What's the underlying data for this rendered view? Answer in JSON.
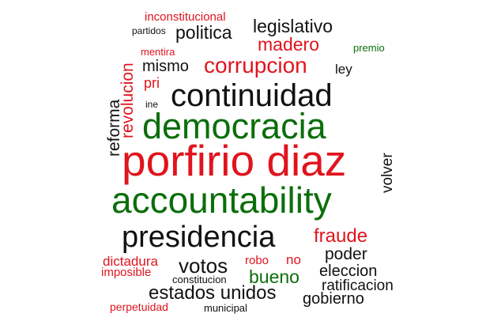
{
  "colors": {
    "red": "#e0141e",
    "green": "#0b6e0b",
    "black": "#111111"
  },
  "words": {
    "porfirio_diaz": "porfirio diaz",
    "democracia": "democracia",
    "accountability": "accountability",
    "continuidad": "continuidad",
    "presidencia": "presidencia",
    "corrupcion": "corrupcion",
    "estados_unidos": "estados unidos",
    "votos": "votos",
    "fraude": "fraude",
    "bueno": "bueno",
    "politica": "politica",
    "legislativo": "legislativo",
    "madero": "madero",
    "mismo": "mismo",
    "revolucion": "revolucion",
    "reforma": "reforma",
    "volver": "volver",
    "poder": "poder",
    "eleccion": "eleccion",
    "ratificacion": "ratificacion",
    "gobierno": "gobierno",
    "dictadura": "dictadura",
    "imposible": "imposible",
    "inconstitucional": "inconstitucional",
    "partidos": "partidos",
    "mentira": "mentira",
    "premio": "premio",
    "ley": "ley",
    "pri": "pri",
    "ine": "ine",
    "robo": "robo",
    "no": "no",
    "constitucion": "constitucion",
    "perpetuidad": "perpetuidad",
    "municipal": "municipal"
  }
}
